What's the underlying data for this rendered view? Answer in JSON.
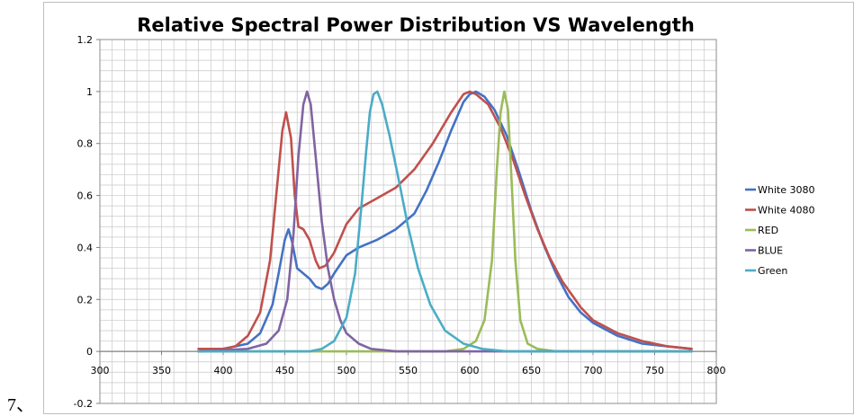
{
  "page": {
    "prefix": "7、"
  },
  "chart_data": {
    "type": "line",
    "title": "Relative Spectral Power Distribution VS Wavelength",
    "xlabel": "",
    "ylabel": "",
    "xlim": [
      300,
      800
    ],
    "ylim": [
      -0.2,
      1.2
    ],
    "x_ticks": [
      300,
      350,
      400,
      450,
      500,
      550,
      600,
      650,
      700,
      750,
      800
    ],
    "y_ticks": [
      -0.2,
      0,
      0.2,
      0.4,
      0.6,
      0.8,
      1,
      1.2
    ],
    "y_tick_labels": [
      "-0.2",
      "0",
      "0.2",
      "0.4",
      "0.6",
      "0.8",
      "1",
      "1.2"
    ],
    "grid": true,
    "legend_position": "right",
    "series": [
      {
        "name": "White 3080",
        "color": "#4472c4",
        "points": [
          [
            380,
            0.01
          ],
          [
            400,
            0.01
          ],
          [
            420,
            0.03
          ],
          [
            430,
            0.07
          ],
          [
            440,
            0.18
          ],
          [
            445,
            0.3
          ],
          [
            450,
            0.43
          ],
          [
            453,
            0.47
          ],
          [
            456,
            0.42
          ],
          [
            460,
            0.32
          ],
          [
            465,
            0.3
          ],
          [
            470,
            0.28
          ],
          [
            475,
            0.25
          ],
          [
            480,
            0.24
          ],
          [
            485,
            0.26
          ],
          [
            490,
            0.3
          ],
          [
            500,
            0.37
          ],
          [
            510,
            0.4
          ],
          [
            525,
            0.43
          ],
          [
            540,
            0.47
          ],
          [
            555,
            0.53
          ],
          [
            565,
            0.62
          ],
          [
            575,
            0.73
          ],
          [
            585,
            0.85
          ],
          [
            595,
            0.96
          ],
          [
            600,
            0.99
          ],
          [
            605,
            1.0
          ],
          [
            612,
            0.98
          ],
          [
            620,
            0.93
          ],
          [
            630,
            0.83
          ],
          [
            640,
            0.69
          ],
          [
            650,
            0.54
          ],
          [
            660,
            0.41
          ],
          [
            670,
            0.3
          ],
          [
            680,
            0.21
          ],
          [
            690,
            0.15
          ],
          [
            700,
            0.11
          ],
          [
            720,
            0.06
          ],
          [
            740,
            0.03
          ],
          [
            760,
            0.02
          ],
          [
            780,
            0.01
          ]
        ]
      },
      {
        "name": "White 4080",
        "color": "#c0504d",
        "points": [
          [
            380,
            0.01
          ],
          [
            400,
            0.01
          ],
          [
            410,
            0.02
          ],
          [
            420,
            0.06
          ],
          [
            430,
            0.15
          ],
          [
            438,
            0.35
          ],
          [
            444,
            0.65
          ],
          [
            448,
            0.85
          ],
          [
            451,
            0.92
          ],
          [
            455,
            0.82
          ],
          [
            458,
            0.6
          ],
          [
            461,
            0.48
          ],
          [
            465,
            0.47
          ],
          [
            470,
            0.43
          ],
          [
            475,
            0.35
          ],
          [
            478,
            0.32
          ],
          [
            483,
            0.33
          ],
          [
            490,
            0.38
          ],
          [
            500,
            0.49
          ],
          [
            510,
            0.55
          ],
          [
            525,
            0.59
          ],
          [
            540,
            0.63
          ],
          [
            555,
            0.7
          ],
          [
            570,
            0.8
          ],
          [
            585,
            0.92
          ],
          [
            595,
            0.99
          ],
          [
            600,
            1.0
          ],
          [
            605,
            0.99
          ],
          [
            615,
            0.95
          ],
          [
            625,
            0.86
          ],
          [
            635,
            0.74
          ],
          [
            645,
            0.6
          ],
          [
            655,
            0.47
          ],
          [
            665,
            0.36
          ],
          [
            675,
            0.27
          ],
          [
            690,
            0.17
          ],
          [
            700,
            0.12
          ],
          [
            720,
            0.07
          ],
          [
            740,
            0.04
          ],
          [
            760,
            0.02
          ],
          [
            780,
            0.01
          ]
        ]
      },
      {
        "name": "RED",
        "color": "#9bbb59",
        "points": [
          [
            380,
            0.0
          ],
          [
            580,
            0.0
          ],
          [
            595,
            0.01
          ],
          [
            605,
            0.04
          ],
          [
            612,
            0.12
          ],
          [
            618,
            0.35
          ],
          [
            622,
            0.7
          ],
          [
            625,
            0.92
          ],
          [
            628,
            1.0
          ],
          [
            631,
            0.93
          ],
          [
            634,
            0.65
          ],
          [
            637,
            0.35
          ],
          [
            641,
            0.12
          ],
          [
            647,
            0.03
          ],
          [
            655,
            0.01
          ],
          [
            670,
            0.0
          ],
          [
            780,
            0.0
          ]
        ]
      },
      {
        "name": "BLUE",
        "color": "#8064a2",
        "points": [
          [
            380,
            0.0
          ],
          [
            420,
            0.01
          ],
          [
            435,
            0.03
          ],
          [
            445,
            0.08
          ],
          [
            452,
            0.2
          ],
          [
            457,
            0.45
          ],
          [
            461,
            0.75
          ],
          [
            465,
            0.95
          ],
          [
            468,
            1.0
          ],
          [
            471,
            0.95
          ],
          [
            475,
            0.75
          ],
          [
            480,
            0.5
          ],
          [
            485,
            0.32
          ],
          [
            490,
            0.2
          ],
          [
            495,
            0.12
          ],
          [
            500,
            0.07
          ],
          [
            510,
            0.03
          ],
          [
            520,
            0.01
          ],
          [
            540,
            0.0
          ],
          [
            780,
            0.0
          ]
        ]
      },
      {
        "name": "Green",
        "color": "#4bacc6",
        "points": [
          [
            380,
            0.0
          ],
          [
            470,
            0.0
          ],
          [
            480,
            0.01
          ],
          [
            490,
            0.04
          ],
          [
            500,
            0.13
          ],
          [
            507,
            0.3
          ],
          [
            512,
            0.55
          ],
          [
            516,
            0.77
          ],
          [
            519,
            0.92
          ],
          [
            522,
            0.99
          ],
          [
            525,
            1.0
          ],
          [
            529,
            0.95
          ],
          [
            535,
            0.83
          ],
          [
            542,
            0.67
          ],
          [
            550,
            0.48
          ],
          [
            558,
            0.32
          ],
          [
            568,
            0.18
          ],
          [
            580,
            0.08
          ],
          [
            595,
            0.03
          ],
          [
            610,
            0.01
          ],
          [
            630,
            0.0
          ],
          [
            780,
            0.0
          ]
        ]
      }
    ]
  }
}
